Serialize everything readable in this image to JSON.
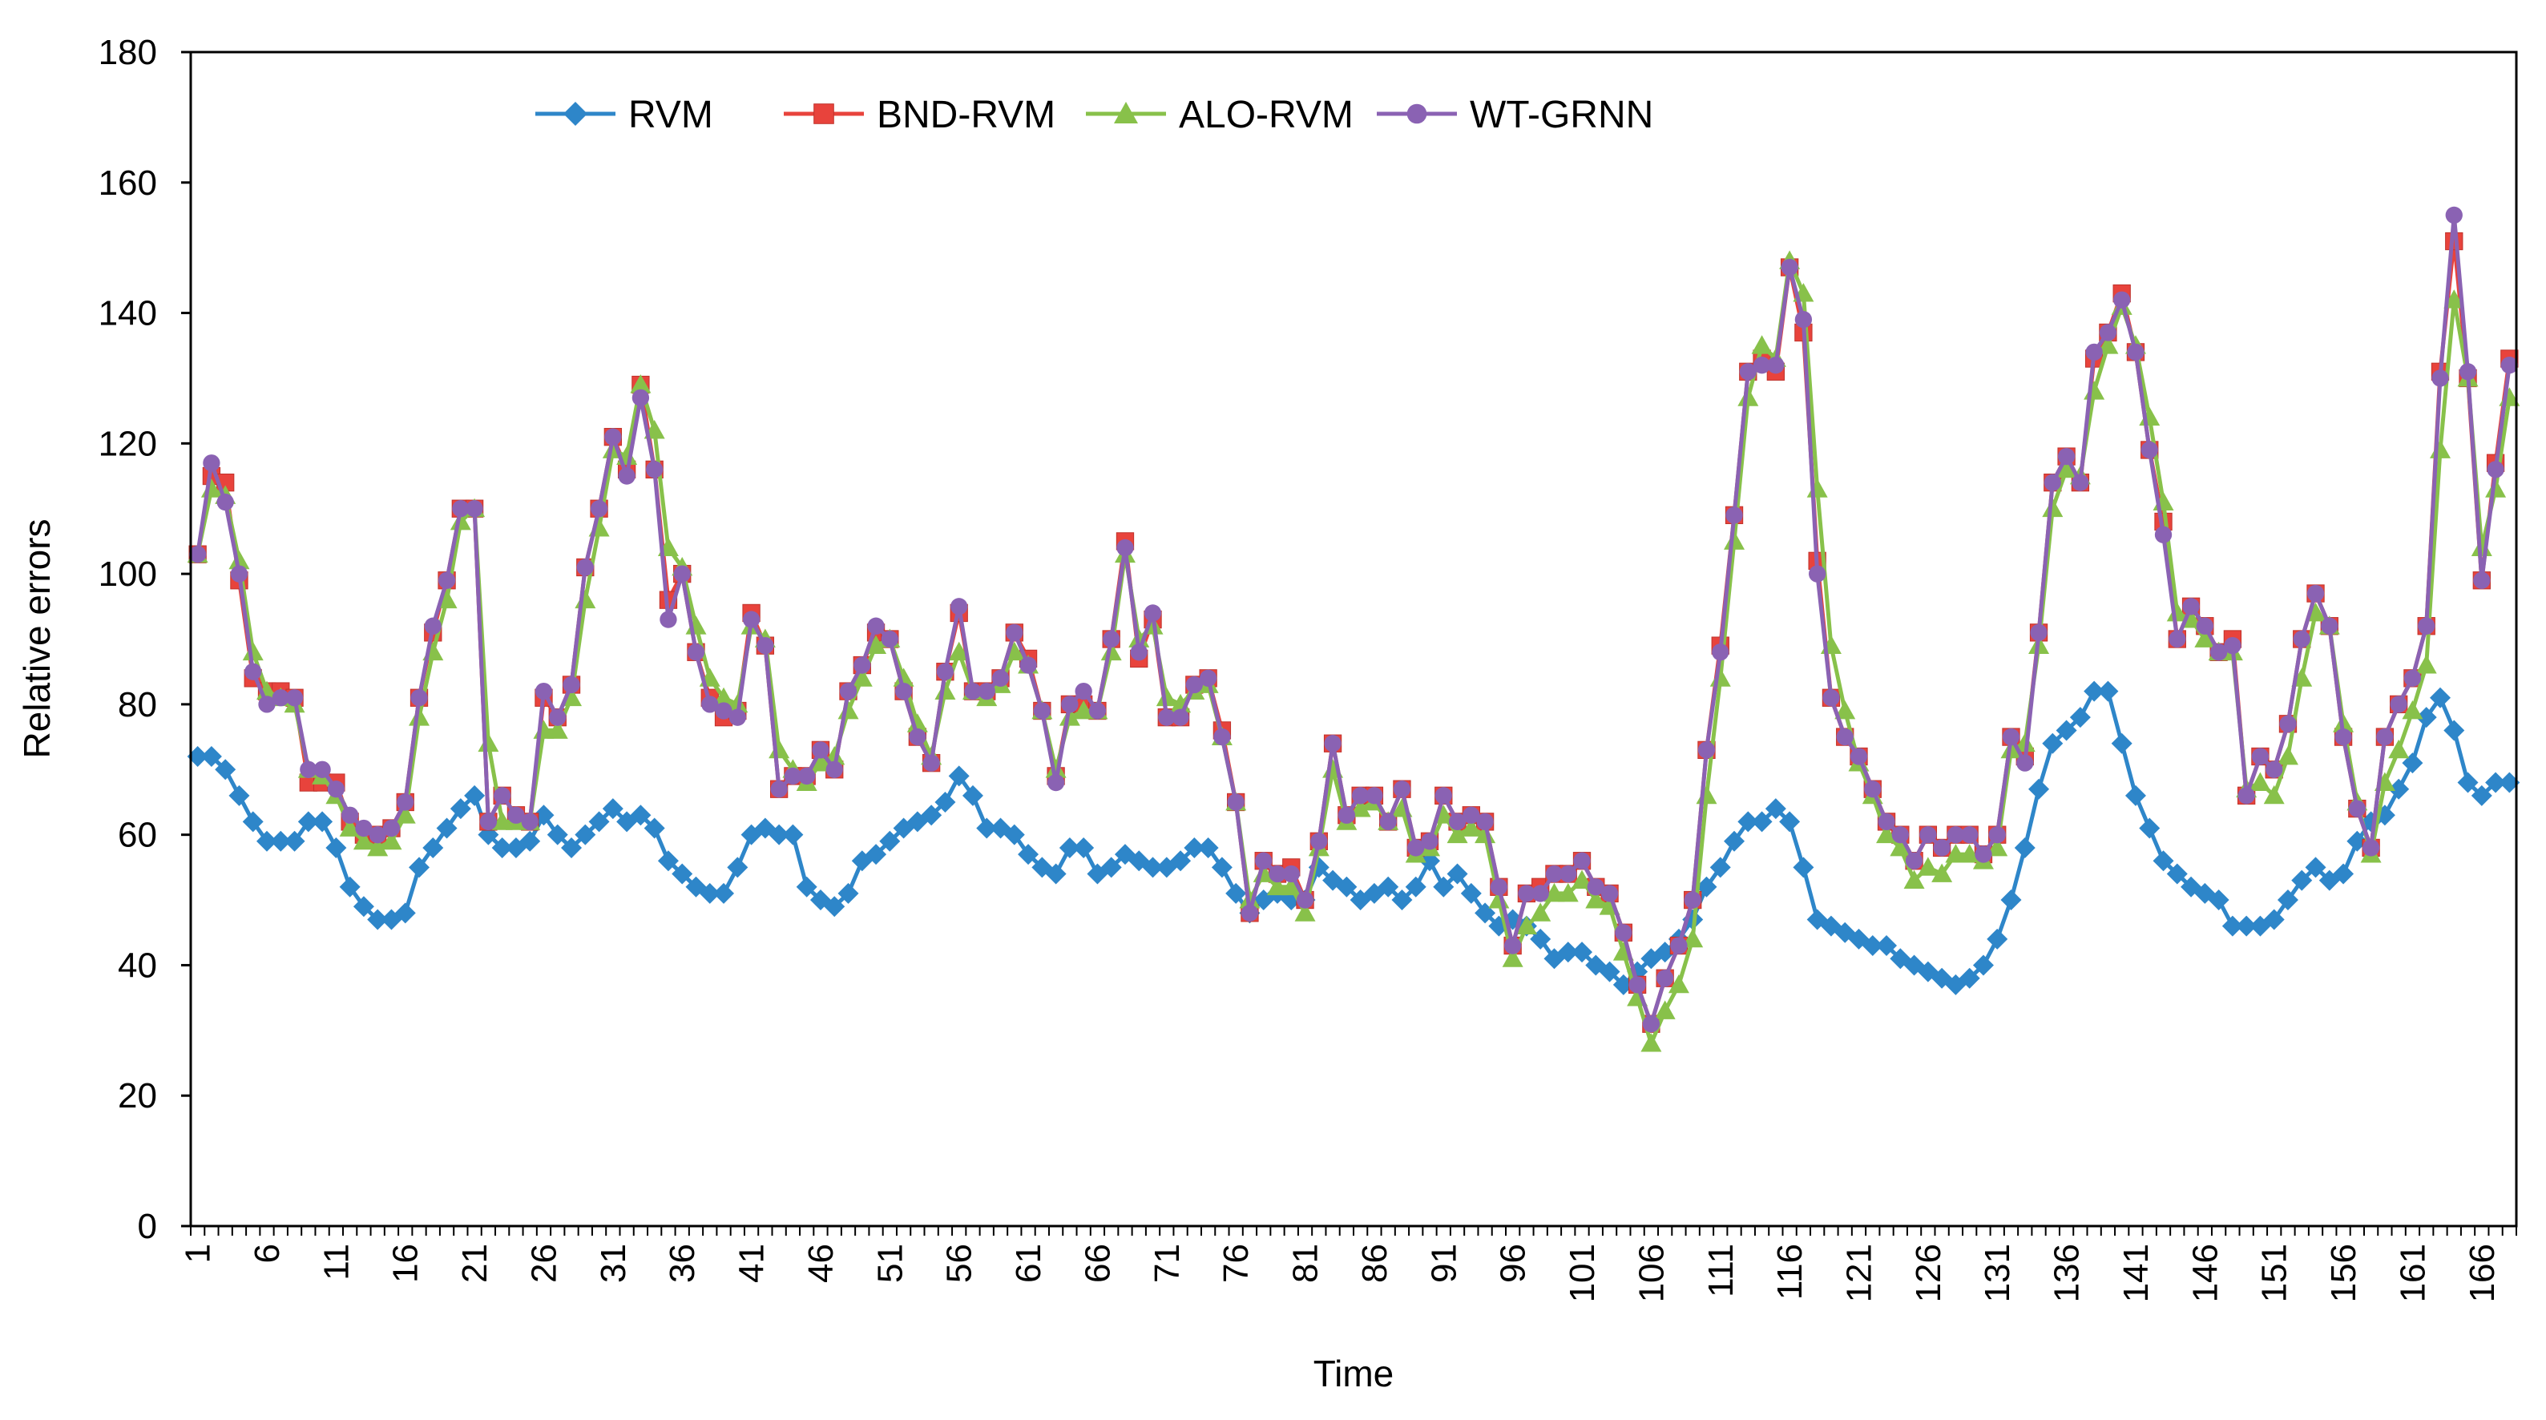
{
  "chart_data": {
    "type": "line",
    "title": "",
    "xlabel": "Time",
    "ylabel": "Relative errors",
    "ylim": [
      0,
      180
    ],
    "yticks": [
      "0",
      "20",
      "40",
      "60",
      "80",
      "100",
      "120",
      "140",
      "160",
      "180"
    ],
    "xticks": [
      "1",
      "6",
      "11",
      "16",
      "21",
      "26",
      "31",
      "36",
      "41",
      "46",
      "51",
      "56",
      "61",
      "66",
      "71",
      "76",
      "81",
      "86",
      "91",
      "96",
      "101",
      "106",
      "111",
      "116",
      "121",
      "126",
      "131",
      "136",
      "141",
      "146",
      "151",
      "156",
      "161",
      "166"
    ],
    "x_count": 168,
    "legend_position": "top",
    "series": [
      {
        "name": "RVM",
        "color": "#2e86c9",
        "marker": "diamond",
        "values": [
          72,
          72,
          70,
          66,
          62,
          59,
          59,
          59,
          62,
          62,
          58,
          52,
          49,
          47,
          47,
          48,
          55,
          58,
          61,
          64,
          66,
          60,
          58,
          58,
          59,
          63,
          60,
          58,
          60,
          62,
          64,
          62,
          63,
          61,
          56,
          54,
          52,
          51,
          51,
          55,
          60,
          61,
          60,
          60,
          52,
          50,
          49,
          51,
          56,
          57,
          59,
          61,
          62,
          63,
          65,
          69,
          66,
          61,
          61,
          60,
          57,
          55,
          54,
          58,
          58,
          54,
          55,
          57,
          56,
          55,
          55,
          56,
          58,
          58,
          55,
          51,
          48,
          50,
          51,
          50,
          50,
          55,
          53,
          52,
          50,
          51,
          52,
          50,
          52,
          56,
          52,
          54,
          51,
          48,
          46,
          47,
          46,
          44,
          41,
          42,
          42,
          40,
          39,
          37,
          39,
          41,
          42,
          44,
          47,
          52,
          55,
          59,
          62,
          62,
          64,
          62,
          55,
          47,
          46,
          45,
          44,
          43,
          43,
          41,
          40,
          39,
          38,
          37,
          38,
          40,
          44,
          50,
          58,
          67,
          74,
          76,
          78,
          82,
          82,
          74,
          66,
          61,
          56,
          54,
          52,
          51,
          50,
          46,
          46,
          46,
          47,
          50,
          53,
          55,
          53,
          54,
          59,
          62,
          63,
          67,
          71,
          78,
          81,
          76,
          68,
          66,
          68,
          68
        ]
      },
      {
        "name": "BND-RVM",
        "color": "#e8433c",
        "marker": "square",
        "values": [
          103,
          115,
          114,
          99,
          84,
          82,
          82,
          81,
          68,
          68,
          68,
          62,
          60,
          60,
          61,
          65,
          81,
          91,
          99,
          110,
          110,
          62,
          66,
          63,
          62,
          81,
          78,
          83,
          101,
          110,
          121,
          116,
          129,
          116,
          96,
          100,
          88,
          81,
          78,
          79,
          94,
          89,
          67,
          69,
          69,
          73,
          70,
          82,
          86,
          91,
          90,
          82,
          75,
          71,
          85,
          94,
          82,
          82,
          84,
          91,
          87,
          79,
          69,
          80,
          80,
          79,
          90,
          105,
          87,
          93,
          78,
          78,
          83,
          84,
          76,
          65,
          48,
          56,
          54,
          55,
          50,
          59,
          74,
          63,
          66,
          66,
          62,
          67,
          58,
          59,
          66,
          62,
          63,
          62,
          52,
          43,
          51,
          52,
          54,
          54,
          56,
          52,
          51,
          45,
          37,
          31,
          38,
          43,
          50,
          73,
          89,
          109,
          131,
          133,
          131,
          147,
          137,
          102,
          81,
          75,
          72,
          67,
          62,
          60,
          56,
          60,
          58,
          60,
          60,
          57,
          60,
          75,
          72,
          91,
          114,
          118,
          114,
          133,
          137,
          143,
          134,
          119,
          108,
          90,
          95,
          92,
          88,
          90,
          66,
          72,
          70,
          77,
          90,
          97,
          92,
          75,
          64,
          58,
          75,
          80,
          84,
          92,
          131,
          151,
          130,
          99,
          117,
          133
        ]
      },
      {
        "name": "ALO-RVM",
        "color": "#88c14a",
        "marker": "triangle",
        "values": [
          103,
          113,
          112,
          102,
          88,
          82,
          81,
          80,
          70,
          69,
          66,
          61,
          59,
          58,
          59,
          63,
          78,
          88,
          96,
          108,
          110,
          74,
          62,
          62,
          62,
          76,
          76,
          81,
          96,
          107,
          119,
          118,
          129,
          122,
          104,
          101,
          92,
          84,
          81,
          80,
          92,
          90,
          73,
          70,
          68,
          71,
          72,
          79,
          84,
          89,
          90,
          84,
          77,
          72,
          82,
          88,
          82,
          81,
          83,
          88,
          86,
          79,
          70,
          78,
          79,
          79,
          88,
          103,
          90,
          92,
          81,
          80,
          82,
          83,
          75,
          65,
          50,
          54,
          52,
          52,
          48,
          58,
          70,
          62,
          64,
          65,
          62,
          64,
          57,
          58,
          63,
          60,
          61,
          60,
          50,
          41,
          46,
          48,
          51,
          51,
          53,
          50,
          49,
          42,
          35,
          28,
          33,
          37,
          44,
          66,
          84,
          105,
          127,
          135,
          133,
          148,
          143,
          113,
          89,
          79,
          71,
          66,
          60,
          58,
          53,
          55,
          54,
          57,
          57,
          56,
          58,
          73,
          74,
          89,
          110,
          116,
          115,
          128,
          135,
          141,
          135,
          124,
          111,
          94,
          93,
          90,
          88,
          88,
          67,
          68,
          66,
          72,
          84,
          94,
          92,
          77,
          65,
          57,
          68,
          73,
          79,
          86,
          119,
          142,
          130,
          104,
          113,
          127
        ]
      },
      {
        "name": "WT-GRNN",
        "color": "#8a62b3",
        "marker": "circle",
        "values": [
          103,
          117,
          111,
          100,
          85,
          80,
          81,
          81,
          70,
          70,
          67,
          63,
          61,
          60,
          61,
          65,
          81,
          92,
          99,
          110,
          110,
          62,
          66,
          63,
          62,
          82,
          78,
          83,
          101,
          110,
          121,
          115,
          127,
          116,
          93,
          100,
          88,
          80,
          79,
          78,
          93,
          89,
          67,
          69,
          69,
          73,
          70,
          82,
          86,
          92,
          90,
          82,
          75,
          71,
          85,
          95,
          82,
          82,
          84,
          91,
          86,
          79,
          68,
          80,
          82,
          79,
          90,
          104,
          88,
          94,
          78,
          78,
          83,
          84,
          75,
          65,
          48,
          56,
          54,
          54,
          50,
          59,
          74,
          63,
          66,
          66,
          62,
          67,
          58,
          59,
          66,
          62,
          63,
          62,
          52,
          43,
          51,
          51,
          54,
          54,
          56,
          52,
          51,
          45,
          37,
          31,
          38,
          43,
          50,
          73,
          88,
          109,
          131,
          132,
          132,
          147,
          139,
          100,
          81,
          75,
          72,
          67,
          62,
          60,
          56,
          60,
          58,
          60,
          60,
          57,
          60,
          75,
          71,
          91,
          114,
          118,
          114,
          134,
          137,
          142,
          134,
          119,
          106,
          90,
          95,
          92,
          88,
          89,
          66,
          72,
          70,
          77,
          90,
          97,
          92,
          75,
          64,
          58,
          75,
          80,
          84,
          92,
          130,
          155,
          131,
          99,
          116,
          132
        ]
      }
    ]
  }
}
